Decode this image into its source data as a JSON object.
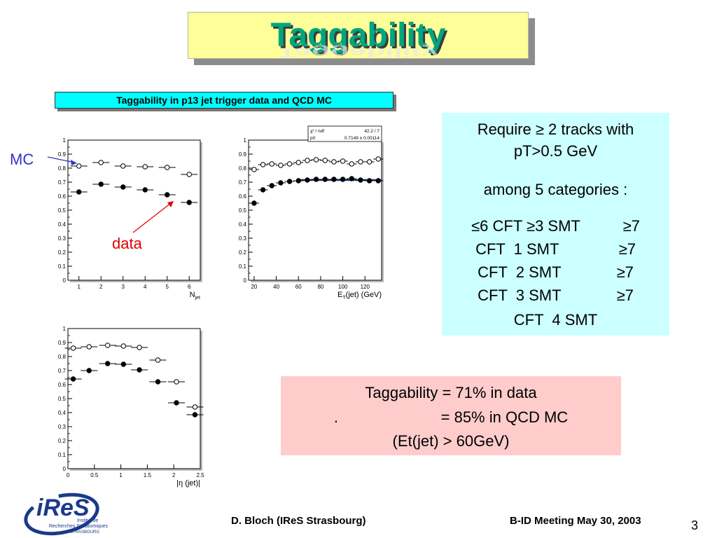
{
  "slide": {
    "title": "Taggability",
    "subtitle": "Taggability in p13 jet trigger data and QCD MC",
    "mc_label": "MC",
    "data_label": "data"
  },
  "requirements": {
    "line1": "Require ≥ 2 tracks with",
    "line2": "pT>0.5 GeV",
    "line3": "among 5 categories :",
    "categories": [
      "≤6 CFT ≥3 SMT          ≥7",
      "CFT  1 SMT              ≥7",
      "CFT  2 SMT             ≥7",
      "CFT  3 SMT             ≥7",
      "CFT  4 SMT"
    ]
  },
  "result": {
    "line1": "Taggability = 71% in data",
    "line2": ".                        = 85% in QCD MC",
    "line3": "(Et(jet) > 60GeV)"
  },
  "footer": {
    "author": "D. Bloch (IReS Strasbourg)",
    "meeting": "B-ID Meeting   May 30, 2003",
    "page": "3"
  },
  "logo": {
    "name": "iReS",
    "line1": "Institut de",
    "line2": "Recherches Subatomiques",
    "line3": "STRASBOURG"
  },
  "chart_data": [
    {
      "type": "scatter",
      "xlabel": "N_jet",
      "xlim": [
        0.5,
        6.5
      ],
      "ylim": [
        0,
        1
      ],
      "xticks": [
        1,
        2,
        3,
        4,
        5,
        6
      ],
      "yticks": [
        0,
        0.1,
        0.2,
        0.3,
        0.4,
        0.5,
        0.6,
        0.7,
        0.8,
        0.9,
        1
      ],
      "series": [
        {
          "name": "MC",
          "marker": "open",
          "x": [
            1,
            2,
            3,
            4,
            5,
            6
          ],
          "y": [
            0.815,
            0.84,
            0.815,
            0.81,
            0.805,
            0.755
          ]
        },
        {
          "name": "data",
          "marker": "filled",
          "x": [
            1,
            2,
            3,
            4,
            5,
            6
          ],
          "y": [
            0.63,
            0.685,
            0.665,
            0.645,
            0.61,
            0.555
          ]
        }
      ]
    },
    {
      "type": "scatter",
      "xlabel": "E_T(jet) (GeV)",
      "xlim": [
        15,
        135
      ],
      "ylim": [
        0,
        1
      ],
      "xticks": [
        20,
        40,
        60,
        80,
        100,
        120
      ],
      "yticks": [
        0,
        0.1,
        0.2,
        0.3,
        0.4,
        0.5,
        0.6,
        0.7,
        0.8,
        0.9,
        1
      ],
      "stats_box": {
        "row1_label": "χ² / ndf",
        "row1_value": "42.2 / 7",
        "row2_label": "p0",
        "row2_value": "0.7149 ± 0.00114"
      },
      "fit_value": 0.7149,
      "series": [
        {
          "name": "MC",
          "marker": "open",
          "x": [
            20,
            28,
            36,
            44,
            52,
            60,
            68,
            76,
            84,
            92,
            100,
            108,
            116,
            124,
            132
          ],
          "y": [
            0.79,
            0.825,
            0.83,
            0.82,
            0.83,
            0.84,
            0.855,
            0.86,
            0.855,
            0.845,
            0.85,
            0.83,
            0.845,
            0.845,
            0.865
          ]
        },
        {
          "name": "data",
          "marker": "filled",
          "x": [
            20,
            28,
            36,
            44,
            52,
            60,
            68,
            76,
            84,
            92,
            100,
            108,
            116,
            124,
            132
          ],
          "y": [
            0.55,
            0.645,
            0.675,
            0.695,
            0.705,
            0.71,
            0.715,
            0.72,
            0.72,
            0.72,
            0.72,
            0.725,
            0.715,
            0.71,
            0.71
          ]
        }
      ]
    },
    {
      "type": "scatter",
      "xlabel": "|η (jet)|",
      "xlim": [
        0,
        2.5
      ],
      "ylim": [
        0,
        1
      ],
      "xticks": [
        0,
        0.5,
        1,
        1.5,
        2,
        2.5
      ],
      "yticks": [
        0,
        0.1,
        0.2,
        0.3,
        0.4,
        0.5,
        0.6,
        0.7,
        0.8,
        0.9,
        1
      ],
      "series": [
        {
          "name": "MC",
          "marker": "open",
          "x": [
            0.1,
            0.4,
            0.75,
            1.05,
            1.35,
            1.7,
            2.05,
            2.4
          ],
          "y": [
            0.86,
            0.87,
            0.88,
            0.875,
            0.865,
            0.775,
            0.62,
            0.44
          ]
        },
        {
          "name": "data",
          "marker": "filled",
          "x": [
            0.1,
            0.4,
            0.75,
            1.05,
            1.35,
            1.7,
            2.05,
            2.4
          ],
          "y": [
            0.64,
            0.7,
            0.75,
            0.745,
            0.705,
            0.62,
            0.47,
            0.385
          ]
        }
      ]
    }
  ]
}
